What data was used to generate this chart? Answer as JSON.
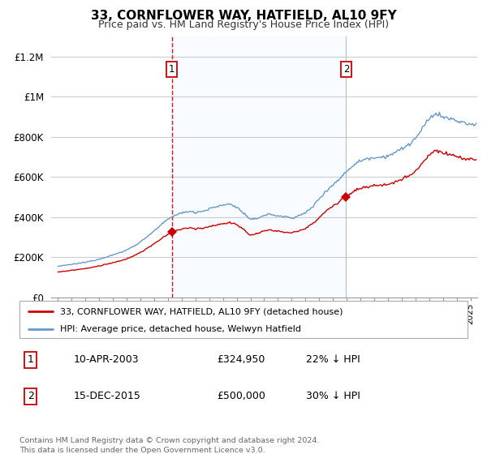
{
  "title": "33, CORNFLOWER WAY, HATFIELD, AL10 9FY",
  "subtitle": "Price paid vs. HM Land Registry's House Price Index (HPI)",
  "legend_line1": "33, CORNFLOWER WAY, HATFIELD, AL10 9FY (detached house)",
  "legend_line2": "HPI: Average price, detached house, Welwyn Hatfield",
  "transaction1_label": "1",
  "transaction1_date": "10-APR-2003",
  "transaction1_price": "£324,950",
  "transaction1_hpi": "22% ↓ HPI",
  "transaction1_year": 2003.27,
  "transaction1_value": 324950,
  "transaction2_label": "2",
  "transaction2_date": "15-DEC-2015",
  "transaction2_price": "£500,000",
  "transaction2_hpi": "30% ↓ HPI",
  "transaction2_year": 2015.96,
  "transaction2_value": 500000,
  "footer": "Contains HM Land Registry data © Crown copyright and database right 2024.\nThis data is licensed under the Open Government Licence v3.0.",
  "xlim_left": 1994.5,
  "xlim_right": 2025.5,
  "ylim_bottom": 0,
  "ylim_top": 1300000,
  "yticks": [
    0,
    200000,
    400000,
    600000,
    800000,
    1000000,
    1200000
  ],
  "ytick_labels": [
    "£0",
    "£200K",
    "£400K",
    "£600K",
    "£800K",
    "£1M",
    "£1.2M"
  ],
  "line_color_red": "#cc0000",
  "line_color_blue": "#6699cc",
  "vline1_color": "#cc0000",
  "vline2_color": "#aabbcc",
  "marker_color_red": "#cc0000",
  "shade_color": "#ddeeff",
  "background_color": "#ffffff",
  "grid_color": "#cccccc"
}
